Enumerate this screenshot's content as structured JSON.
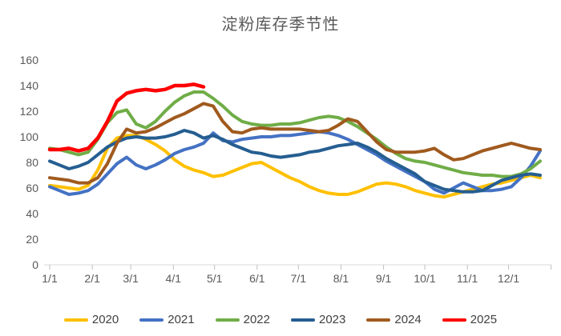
{
  "title": "淀粉库存季节性",
  "chart_data": {
    "type": "line",
    "title": "淀粉库存季节性",
    "x_unit": "week-of-year",
    "x_tick_labels": [
      "1/1",
      "2/1",
      "3/1",
      "4/1",
      "5/1",
      "6/1",
      "7/1",
      "8/1",
      "9/1",
      "10/1",
      "11/1",
      "12/1"
    ],
    "y_ticks": [
      0,
      20,
      40,
      60,
      80,
      100,
      120,
      140,
      160
    ],
    "ylim": [
      0,
      160
    ],
    "grid": false,
    "legend_position": "bottom",
    "axis_color": "#D9D9D9",
    "tick_color": "#BFBFBF",
    "series": [
      {
        "name": "2020",
        "color": "#FFC000",
        "values": [
          62,
          61,
          60,
          59,
          62,
          74,
          91,
          99,
          101,
          101,
          98,
          94,
          89,
          82,
          77,
          74,
          72,
          69,
          70,
          73,
          76,
          79,
          80,
          76,
          72,
          68,
          65,
          61,
          58,
          56,
          55,
          55,
          57,
          60,
          63,
          64,
          63,
          61,
          58,
          56,
          54,
          53,
          55,
          57,
          59,
          61,
          63,
          64,
          66,
          68,
          70,
          68
        ]
      },
      {
        "name": "2021",
        "color": "#4472C4",
        "values": [
          61,
          58,
          55,
          56,
          58,
          63,
          71,
          79,
          84,
          78,
          75,
          78,
          82,
          87,
          90,
          92,
          95,
          103,
          97,
          96,
          98,
          99,
          100,
          100,
          101,
          101,
          102,
          103,
          104,
          103,
          101,
          98,
          94,
          90,
          86,
          81,
          77,
          73,
          69,
          65,
          59,
          56,
          60,
          64,
          61,
          58,
          58,
          59,
          61,
          68,
          77,
          89
        ]
      },
      {
        "name": "2022",
        "color": "#70AD47",
        "values": [
          91,
          90,
          88,
          86,
          88,
          98,
          111,
          119,
          121,
          110,
          107,
          112,
          120,
          127,
          132,
          135,
          135,
          130,
          124,
          117,
          112,
          110,
          109,
          109,
          110,
          110,
          111,
          113,
          115,
          116,
          115,
          112,
          108,
          103,
          98,
          92,
          87,
          83,
          81,
          80,
          78,
          76,
          74,
          72,
          71,
          70,
          70,
          69,
          69,
          71,
          75,
          81
        ]
      },
      {
        "name": "2023",
        "color": "#255E91",
        "values": [
          81,
          78,
          75,
          77,
          80,
          86,
          92,
          96,
          99,
          100,
          99,
          99,
          100,
          102,
          105,
          103,
          99,
          101,
          98,
          94,
          91,
          88,
          87,
          85,
          84,
          85,
          86,
          88,
          89,
          91,
          93,
          94,
          95,
          92,
          88,
          83,
          79,
          75,
          71,
          65,
          62,
          59,
          58,
          57,
          57,
          58,
          62,
          66,
          68,
          70,
          71,
          70
        ]
      },
      {
        "name": "2024",
        "color": "#A05A1E",
        "values": [
          68,
          67,
          66,
          64,
          64,
          68,
          79,
          95,
          106,
          103,
          104,
          107,
          111,
          115,
          118,
          122,
          126,
          124,
          112,
          104,
          103,
          106,
          107,
          106,
          106,
          106,
          106,
          105,
          104,
          105,
          109,
          114,
          112,
          104,
          96,
          90,
          88,
          88,
          88,
          89,
          91,
          86,
          82,
          83,
          86,
          89,
          91,
          93,
          95,
          93,
          91,
          90
        ]
      },
      {
        "name": "2025",
        "color": "#FF0000",
        "values": [
          90,
          90,
          91,
          89,
          91,
          99,
          112,
          128,
          134,
          136,
          137,
          136,
          137,
          140,
          140,
          141,
          139,
          null,
          null,
          null,
          null,
          null,
          null,
          null,
          null,
          null,
          null,
          null,
          null,
          null,
          null,
          null,
          null,
          null,
          null,
          null,
          null,
          null,
          null,
          null,
          null,
          null,
          null,
          null,
          null,
          null,
          null,
          null,
          null,
          null,
          null,
          null
        ]
      }
    ]
  }
}
